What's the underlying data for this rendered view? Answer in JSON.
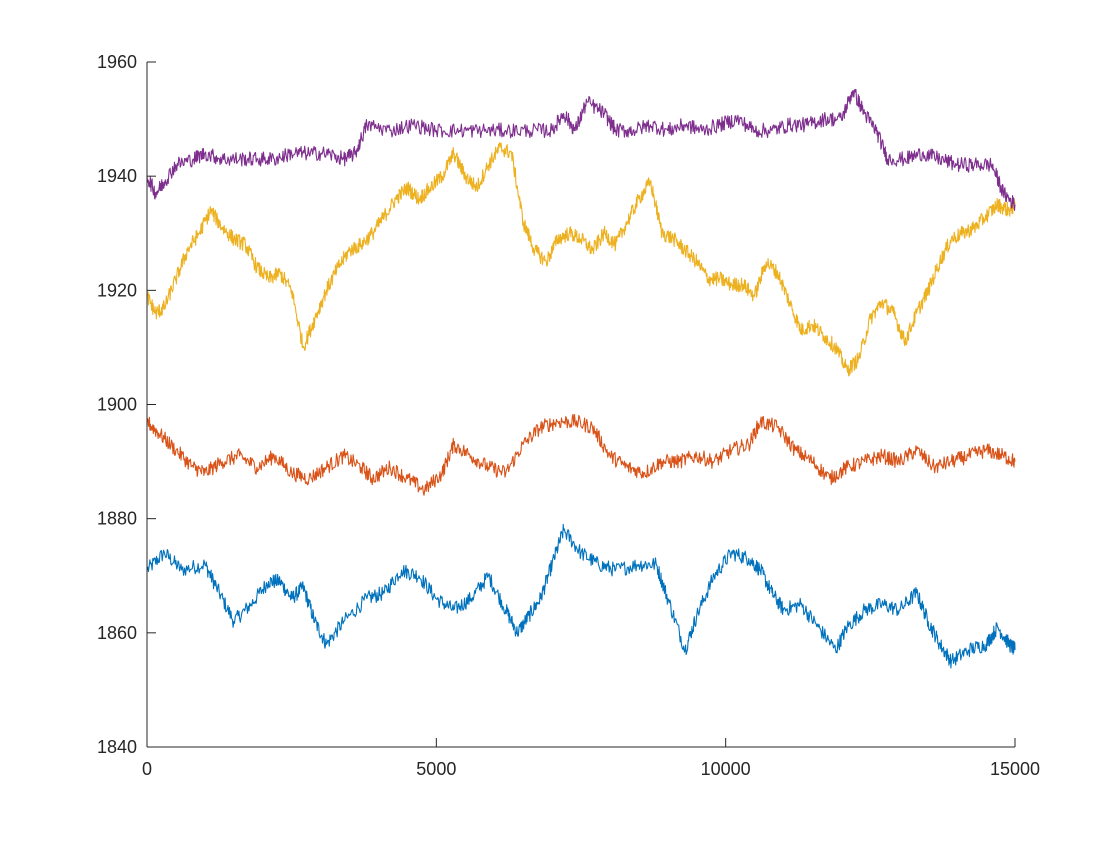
{
  "chart_data": {
    "type": "line",
    "title": "",
    "xlabel": "",
    "ylabel": "",
    "xlim": [
      0,
      15000
    ],
    "ylim": [
      1840,
      1960
    ],
    "grid": false,
    "legend": "none",
    "x_ticks": [
      0,
      5000,
      10000,
      15000
    ],
    "x_tick_labels": [
      "0",
      "5000",
      "10000",
      "15000"
    ],
    "y_ticks": [
      1840,
      1860,
      1880,
      1900,
      1920,
      1940,
      1960
    ],
    "y_tick_labels": [
      "1840",
      "1860",
      "1880",
      "1900",
      "1920",
      "1940",
      "1960"
    ],
    "series": [
      {
        "color": "#0072BD",
        "points": [
          [
            0,
            1871
          ],
          [
            300,
            1874
          ],
          [
            600,
            1871
          ],
          [
            1000,
            1872
          ],
          [
            1200,
            1868
          ],
          [
            1500,
            1862
          ],
          [
            1800,
            1865
          ],
          [
            2100,
            1869
          ],
          [
            2300,
            1869
          ],
          [
            2500,
            1866
          ],
          [
            2700,
            1868
          ],
          [
            2900,
            1862
          ],
          [
            3100,
            1858
          ],
          [
            3400,
            1862
          ],
          [
            3800,
            1866
          ],
          [
            4100,
            1867
          ],
          [
            4400,
            1871
          ],
          [
            4700,
            1870
          ],
          [
            5000,
            1866
          ],
          [
            5300,
            1864
          ],
          [
            5600,
            1866
          ],
          [
            5900,
            1870
          ],
          [
            6200,
            1864
          ],
          [
            6400,
            1860
          ],
          [
            6600,
            1863
          ],
          [
            6800,
            1866
          ],
          [
            7000,
            1872
          ],
          [
            7200,
            1878
          ],
          [
            7500,
            1874
          ],
          [
            7800,
            1872
          ],
          [
            8100,
            1871
          ],
          [
            8500,
            1872
          ],
          [
            8800,
            1872
          ],
          [
            9000,
            1866
          ],
          [
            9300,
            1857
          ],
          [
            9500,
            1863
          ],
          [
            9800,
            1870
          ],
          [
            10100,
            1874
          ],
          [
            10400,
            1873
          ],
          [
            10600,
            1871
          ],
          [
            10800,
            1867
          ],
          [
            11000,
            1864
          ],
          [
            11300,
            1865
          ],
          [
            11600,
            1861
          ],
          [
            11900,
            1857
          ],
          [
            12100,
            1861
          ],
          [
            12400,
            1864
          ],
          [
            12700,
            1865
          ],
          [
            13000,
            1864
          ],
          [
            13300,
            1867
          ],
          [
            13500,
            1862
          ],
          [
            13700,
            1858
          ],
          [
            13900,
            1855
          ],
          [
            14200,
            1857
          ],
          [
            14500,
            1858
          ],
          [
            14700,
            1861
          ],
          [
            14900,
            1858
          ],
          [
            15000,
            1857
          ]
        ]
      },
      {
        "color": "#D95319",
        "points": [
          [
            0,
            1897
          ],
          [
            200,
            1895
          ],
          [
            500,
            1892
          ],
          [
            800,
            1889
          ],
          [
            1000,
            1888
          ],
          [
            1300,
            1890
          ],
          [
            1600,
            1891
          ],
          [
            1900,
            1889
          ],
          [
            2200,
            1891
          ],
          [
            2500,
            1888
          ],
          [
            2800,
            1887
          ],
          [
            3100,
            1889
          ],
          [
            3400,
            1891
          ],
          [
            3700,
            1889
          ],
          [
            3900,
            1887
          ],
          [
            4200,
            1889
          ],
          [
            4500,
            1887
          ],
          [
            4800,
            1885
          ],
          [
            5100,
            1888
          ],
          [
            5300,
            1893
          ],
          [
            5600,
            1891
          ],
          [
            5900,
            1889
          ],
          [
            6200,
            1888
          ],
          [
            6500,
            1893
          ],
          [
            6800,
            1896
          ],
          [
            7100,
            1897
          ],
          [
            7400,
            1897
          ],
          [
            7700,
            1896
          ],
          [
            8000,
            1891
          ],
          [
            8300,
            1889
          ],
          [
            8600,
            1888
          ],
          [
            8900,
            1890
          ],
          [
            9200,
            1890
          ],
          [
            9500,
            1891
          ],
          [
            9800,
            1890
          ],
          [
            10100,
            1892
          ],
          [
            10400,
            1893
          ],
          [
            10600,
            1897
          ],
          [
            10900,
            1896
          ],
          [
            11200,
            1892
          ],
          [
            11500,
            1890
          ],
          [
            11800,
            1887
          ],
          [
            12100,
            1889
          ],
          [
            12400,
            1890
          ],
          [
            12700,
            1891
          ],
          [
            13000,
            1890
          ],
          [
            13300,
            1892
          ],
          [
            13600,
            1889
          ],
          [
            13900,
            1890
          ],
          [
            14200,
            1891
          ],
          [
            14500,
            1892
          ],
          [
            14800,
            1891
          ],
          [
            15000,
            1890
          ]
        ]
      },
      {
        "color": "#EDB120",
        "points": [
          [
            0,
            1919
          ],
          [
            150,
            1916
          ],
          [
            300,
            1917
          ],
          [
            500,
            1922
          ],
          [
            700,
            1927
          ],
          [
            900,
            1930
          ],
          [
            1100,
            1934
          ],
          [
            1300,
            1931
          ],
          [
            1500,
            1929
          ],
          [
            1700,
            1928
          ],
          [
            1900,
            1924
          ],
          [
            2100,
            1922
          ],
          [
            2300,
            1923
          ],
          [
            2500,
            1920
          ],
          [
            2700,
            1910
          ],
          [
            2900,
            1915
          ],
          [
            3100,
            1920
          ],
          [
            3300,
            1924
          ],
          [
            3500,
            1927
          ],
          [
            3700,
            1928
          ],
          [
            3900,
            1930
          ],
          [
            4100,
            1933
          ],
          [
            4300,
            1936
          ],
          [
            4500,
            1938
          ],
          [
            4700,
            1936
          ],
          [
            4900,
            1938
          ],
          [
            5100,
            1940
          ],
          [
            5300,
            1944
          ],
          [
            5500,
            1940
          ],
          [
            5700,
            1938
          ],
          [
            5900,
            1942
          ],
          [
            6100,
            1945
          ],
          [
            6300,
            1944
          ],
          [
            6500,
            1932
          ],
          [
            6700,
            1927
          ],
          [
            6900,
            1925
          ],
          [
            7100,
            1929
          ],
          [
            7300,
            1930
          ],
          [
            7500,
            1929
          ],
          [
            7700,
            1927
          ],
          [
            7900,
            1930
          ],
          [
            8100,
            1928
          ],
          [
            8300,
            1932
          ],
          [
            8500,
            1936
          ],
          [
            8700,
            1939
          ],
          [
            8900,
            1930
          ],
          [
            9100,
            1929
          ],
          [
            9300,
            1927
          ],
          [
            9500,
            1925
          ],
          [
            9700,
            1922
          ],
          [
            9900,
            1922
          ],
          [
            10100,
            1921
          ],
          [
            10300,
            1921
          ],
          [
            10500,
            1919
          ],
          [
            10700,
            1925
          ],
          [
            10900,
            1923
          ],
          [
            11100,
            1918
          ],
          [
            11300,
            1913
          ],
          [
            11500,
            1914
          ],
          [
            11700,
            1912
          ],
          [
            11900,
            1910
          ],
          [
            12100,
            1906
          ],
          [
            12300,
            1908
          ],
          [
            12500,
            1915
          ],
          [
            12700,
            1918
          ],
          [
            12900,
            1916
          ],
          [
            13100,
            1911
          ],
          [
            13300,
            1916
          ],
          [
            13500,
            1920
          ],
          [
            13700,
            1925
          ],
          [
            13900,
            1929
          ],
          [
            14100,
            1930
          ],
          [
            14300,
            1931
          ],
          [
            14500,
            1933
          ],
          [
            14700,
            1935
          ],
          [
            14900,
            1934
          ],
          [
            15000,
            1935
          ]
        ]
      },
      {
        "color": "#7E2F8E",
        "points": [
          [
            0,
            1940
          ],
          [
            150,
            1937
          ],
          [
            300,
            1939
          ],
          [
            500,
            1942
          ],
          [
            800,
            1943
          ],
          [
            1000,
            1944
          ],
          [
            1300,
            1943
          ],
          [
            1600,
            1943
          ],
          [
            1900,
            1943
          ],
          [
            2200,
            1943
          ],
          [
            2500,
            1944
          ],
          [
            2800,
            1944
          ],
          [
            3100,
            1944
          ],
          [
            3400,
            1943
          ],
          [
            3600,
            1944
          ],
          [
            3800,
            1949
          ],
          [
            4200,
            1948
          ],
          [
            4600,
            1949
          ],
          [
            5000,
            1948
          ],
          [
            5400,
            1948
          ],
          [
            5800,
            1948
          ],
          [
            6200,
            1948
          ],
          [
            6600,
            1948
          ],
          [
            7000,
            1948
          ],
          [
            7200,
            1951
          ],
          [
            7400,
            1948
          ],
          [
            7600,
            1953
          ],
          [
            7900,
            1951
          ],
          [
            8100,
            1948
          ],
          [
            8400,
            1948
          ],
          [
            8700,
            1949
          ],
          [
            9000,
            1948
          ],
          [
            9300,
            1949
          ],
          [
            9600,
            1948
          ],
          [
            9900,
            1949
          ],
          [
            10200,
            1950
          ],
          [
            10500,
            1948
          ],
          [
            10800,
            1948
          ],
          [
            11100,
            1949
          ],
          [
            11400,
            1949
          ],
          [
            11700,
            1950
          ],
          [
            12000,
            1950
          ],
          [
            12200,
            1955
          ],
          [
            12400,
            1951
          ],
          [
            12600,
            1948
          ],
          [
            12800,
            1943
          ],
          [
            13100,
            1943
          ],
          [
            13400,
            1944
          ],
          [
            13700,
            1943
          ],
          [
            14000,
            1942
          ],
          [
            14300,
            1942
          ],
          [
            14600,
            1942
          ],
          [
            14800,
            1937
          ],
          [
            15000,
            1935
          ]
        ]
      }
    ]
  }
}
